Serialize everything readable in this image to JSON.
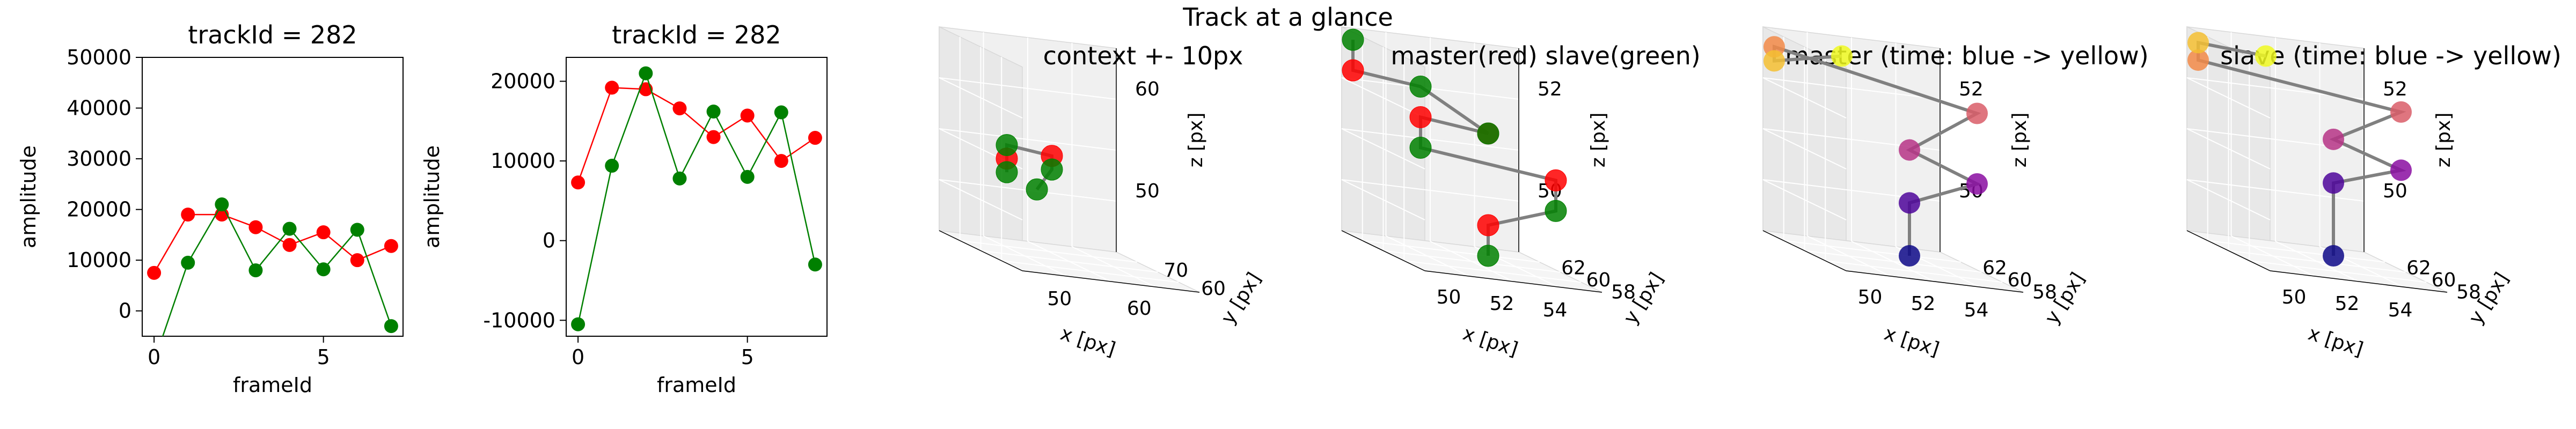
{
  "suptitle": "Track at a glance",
  "colors": {
    "master": "#ff0000",
    "slave": "#008000",
    "connector": "#808080"
  },
  "chart_data": [
    {
      "type": "line",
      "title": "trackId = 282",
      "xlabel": "frameId",
      "ylabel": "amplitude",
      "xlim": [
        -0.35,
        7.35
      ],
      "ylim": [
        -5000,
        50000
      ],
      "xticks": [
        0,
        5
      ],
      "yticks": [
        0,
        10000,
        20000,
        30000,
        40000,
        50000
      ],
      "x": [
        0,
        1,
        2,
        3,
        4,
        5,
        6,
        7
      ],
      "series": [
        {
          "name": "master",
          "color": "#ff0000",
          "values": [
            7500,
            19000,
            19000,
            16500,
            13000,
            15500,
            10000,
            12800
          ]
        },
        {
          "name": "slave",
          "color": "#008000",
          "values": [
            -10000,
            9500,
            21000,
            8000,
            16200,
            8200,
            16000,
            -3000
          ]
        }
      ]
    },
    {
      "type": "line",
      "title": "trackId = 282",
      "xlabel": "frameId",
      "ylabel": "amplitude",
      "xlim": [
        -0.35,
        7.35
      ],
      "ylim": [
        -12000,
        23000
      ],
      "xticks": [
        0,
        5
      ],
      "yticks": [
        -10000,
        0,
        10000,
        20000
      ],
      "x": [
        0,
        1,
        2,
        3,
        4,
        5,
        6,
        7
      ],
      "series": [
        {
          "name": "master",
          "color": "#ff0000",
          "values": [
            7300,
            19200,
            19000,
            16600,
            13000,
            15700,
            10000,
            12900
          ]
        },
        {
          "name": "slave",
          "color": "#008000",
          "values": [
            -10500,
            9400,
            21000,
            7800,
            16200,
            8000,
            16100,
            -3000
          ]
        }
      ]
    },
    {
      "type": "scatter3d",
      "title": "context +- 10px",
      "xlabel": "x [px]",
      "ylabel": "y [px]",
      "zlabel": "z [px]",
      "xticks": [
        "50",
        "60"
      ],
      "yticks": [
        "60",
        "70"
      ],
      "zticks": [
        "50",
        "60"
      ],
      "series": [
        {
          "name": "master",
          "color": "#ff0000",
          "points": [
            [
              53,
              62,
              50
            ],
            [
              54,
              63,
              51
            ]
          ]
        },
        {
          "name": "slave",
          "color": "#008000",
          "points": [
            [
              53,
              62,
              49
            ],
            [
              53,
              62,
              51
            ],
            [
              54,
              63,
              50
            ],
            [
              54,
              62,
              48
            ]
          ]
        }
      ]
    },
    {
      "type": "scatter3d",
      "title": "master(red) slave(green)",
      "xlabel": "x [px]",
      "ylabel": "y [px]",
      "zlabel": "z [px]",
      "xticks": [
        "50",
        "52",
        "54"
      ],
      "yticks": [
        "58",
        "60",
        "62"
      ],
      "zticks": [
        "50",
        "52"
      ],
      "series": [
        {
          "name": "master",
          "color": "#ff0000",
          "points": [
            [
              51,
              58,
              52
            ],
            [
              53,
              60,
              51
            ],
            [
              52,
              59,
              51
            ],
            [
              54,
              61,
              50
            ],
            [
              53,
              60,
              48
            ]
          ]
        },
        {
          "name": "slave",
          "color": "#008000",
          "points": [
            [
              51,
              58,
              53
            ],
            [
              52,
              59,
              52
            ],
            [
              53,
              60,
              51
            ],
            [
              52,
              59,
              50
            ],
            [
              54,
              61,
              49
            ],
            [
              53,
              60,
              47
            ]
          ]
        }
      ]
    },
    {
      "type": "scatter3d",
      "title": "master (time: blue -> yellow)",
      "xlabel": "x [px]",
      "ylabel": "y [px]",
      "zlabel": "z [px]",
      "xticks": [
        "50",
        "52",
        "54"
      ],
      "yticks": [
        "58",
        "60",
        "62"
      ],
      "zticks": [
        "50",
        "52"
      ],
      "colormap": "plasma",
      "points": [
        [
          53,
          60,
          48
        ],
        [
          53,
          60,
          49.5
        ],
        [
          54,
          61,
          50.5
        ],
        [
          53,
          60,
          51
        ],
        [
          54,
          61,
          52.5
        ],
        [
          51,
          58,
          53
        ],
        [
          51,
          58,
          52.6
        ],
        [
          52,
          59,
          53.2
        ]
      ]
    },
    {
      "type": "scatter3d",
      "title": "slave (time: blue -> yellow)",
      "xlabel": "x [px]",
      "ylabel": "y [px]",
      "zlabel": "z [px]",
      "xticks": [
        "50",
        "52",
        "54"
      ],
      "yticks": [
        "58",
        "60",
        "62"
      ],
      "zticks": [
        "50",
        "52"
      ],
      "colormap": "plasma",
      "points": [
        [
          53,
          60,
          47
        ],
        [
          53,
          60,
          49.5
        ],
        [
          54,
          61,
          50.5
        ],
        [
          53,
          60,
          51
        ],
        [
          54,
          61,
          52.5
        ],
        [
          51,
          58,
          52.6
        ],
        [
          51,
          58,
          53.2
        ],
        [
          52,
          59,
          53.3
        ]
      ]
    }
  ]
}
